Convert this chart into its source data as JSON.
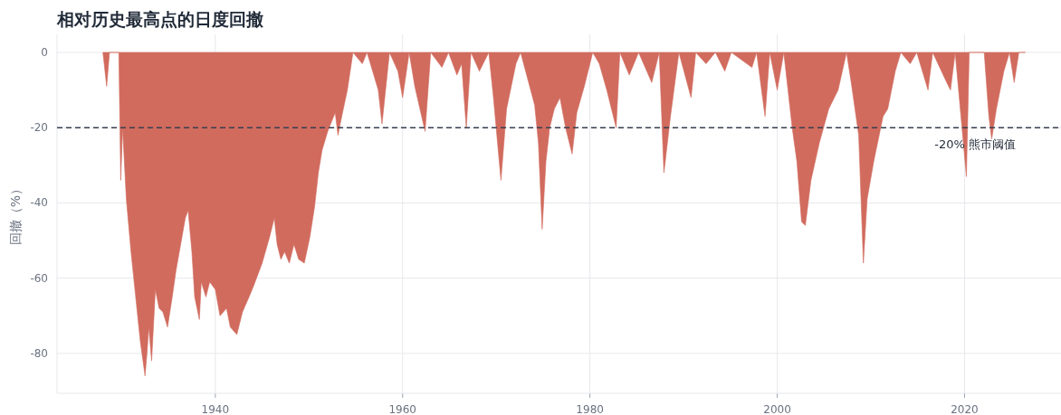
{
  "chart_data": {
    "type": "area",
    "title": "相对历史最高点的日度回撤",
    "ylabel": "回撤（%）",
    "color": "#d16b5e",
    "x": [
      1928.0,
      1928.4,
      1928.7,
      1929.6,
      1929.7,
      1929.9,
      1930.1,
      1930.5,
      1931.0,
      1931.5,
      1932.0,
      1932.5,
      1932.7,
      1932.9,
      1933.2,
      1933.6,
      1934.0,
      1934.4,
      1934.9,
      1935.4,
      1935.8,
      1936.3,
      1936.8,
      1937.1,
      1937.5,
      1937.8,
      1938.3,
      1938.5,
      1939.0,
      1939.4,
      1940.0,
      1940.5,
      1941.2,
      1941.6,
      1942.3,
      1942.9,
      1943.6,
      1944.1,
      1945.0,
      1945.8,
      1946.3,
      1946.6,
      1947.0,
      1947.4,
      1947.9,
      1948.4,
      1948.9,
      1949.5,
      1950.1,
      1950.6,
      1951.0,
      1951.4,
      1952.0,
      1952.8,
      1953.1,
      1953.5,
      1954.1,
      1954.7,
      1955.7,
      1956.2,
      1957.4,
      1957.8,
      1958.6,
      1959.5,
      1960.0,
      1960.7,
      1961.3,
      1962.4,
      1963.0,
      1964.2,
      1964.9,
      1965.8,
      1966.3,
      1966.8,
      1967.3,
      1968.2,
      1969.2,
      1969.7,
      1970.5,
      1971.1,
      1972.1,
      1972.6,
      1974.1,
      1974.5,
      1974.9,
      1975.3,
      1975.7,
      1976.2,
      1976.8,
      1977.4,
      1978.1,
      1978.6,
      1979.4,
      1980.3,
      1981.0,
      1981.8,
      1982.8,
      1983.2,
      1984.2,
      1985.2,
      1986.6,
      1987.4,
      1987.9,
      1988.6,
      1989.5,
      1990.8,
      1991.3,
      1992.4,
      1993.4,
      1994.4,
      1995.1,
      1997.3,
      1997.8,
      1998.7,
      1999.2,
      2000.0,
      2000.7,
      2001.6,
      2002.1,
      2002.6,
      2003.0,
      2003.6,
      2004.5,
      2005.5,
      2006.5,
      2007.4,
      2007.9,
      2008.7,
      2009.2,
      2009.6,
      2010.3,
      2011.3,
      2011.8,
      2012.6,
      2013.2,
      2014.2,
      2014.9,
      2016.1,
      2016.6,
      2018.1,
      2018.5,
      2019.0,
      2020.2,
      2020.5,
      2022.1,
      2022.6,
      2022.9,
      2023.4,
      2024.2,
      2024.8,
      2025.3,
      2025.8,
      2026.5
    ],
    "values": [
      0,
      -9,
      0,
      0,
      0,
      -34,
      -20,
      -39,
      -53,
      -65,
      -77,
      -86,
      -80,
      -73,
      -82,
      -63,
      -68,
      -69,
      -73,
      -65,
      -58,
      -51,
      -44,
      -42,
      -53,
      -65,
      -71,
      -61,
      -65,
      -61,
      -63,
      -70,
      -68,
      -73,
      -75,
      -69,
      -65,
      -62,
      -56,
      -49,
      -44,
      -51,
      -55,
      -53,
      -56,
      -51,
      -55,
      -56,
      -49,
      -41,
      -32,
      -26,
      -21,
      -16,
      -22,
      -17,
      -10,
      0,
      -3,
      0,
      -10,
      -19,
      0,
      -5,
      -12,
      0,
      -9,
      -21,
      0,
      -4,
      0,
      -6,
      -3,
      -20,
      0,
      -5,
      0,
      -12,
      -34,
      -15,
      -3,
      0,
      -14,
      -24,
      -47,
      -29,
      -20,
      -15,
      -12,
      -20,
      -27,
      -16,
      -9,
      0,
      -3,
      -10,
      -20,
      0,
      -6,
      0,
      -8,
      0,
      -32,
      -17,
      0,
      -12,
      0,
      -3,
      0,
      -5,
      0,
      -4,
      0,
      -17,
      0,
      -10,
      0,
      -20,
      -29,
      -45,
      -46,
      -34,
      -24,
      -15,
      -10,
      0,
      -8,
      -22,
      -56,
      -39,
      -29,
      -17,
      -15,
      -5,
      0,
      -3,
      0,
      -10,
      0,
      -8,
      -10,
      0,
      -33,
      0,
      0,
      -17,
      -23,
      -15,
      -5,
      0,
      -8,
      0,
      0
    ],
    "xlim": [
      1923.1,
      2030.3
    ],
    "ylim": [
      -90.6,
      4.8
    ],
    "xticks": [
      1940,
      1960,
      1980,
      2000,
      2020
    ],
    "yticks": [
      0,
      -20,
      -40,
      -60,
      -80
    ],
    "grid": true,
    "ref_lines": [
      {
        "axis": "y",
        "value": -20,
        "label": "-20% 熊市阈值",
        "color": "#374151",
        "line_style": "dashed"
      }
    ]
  }
}
